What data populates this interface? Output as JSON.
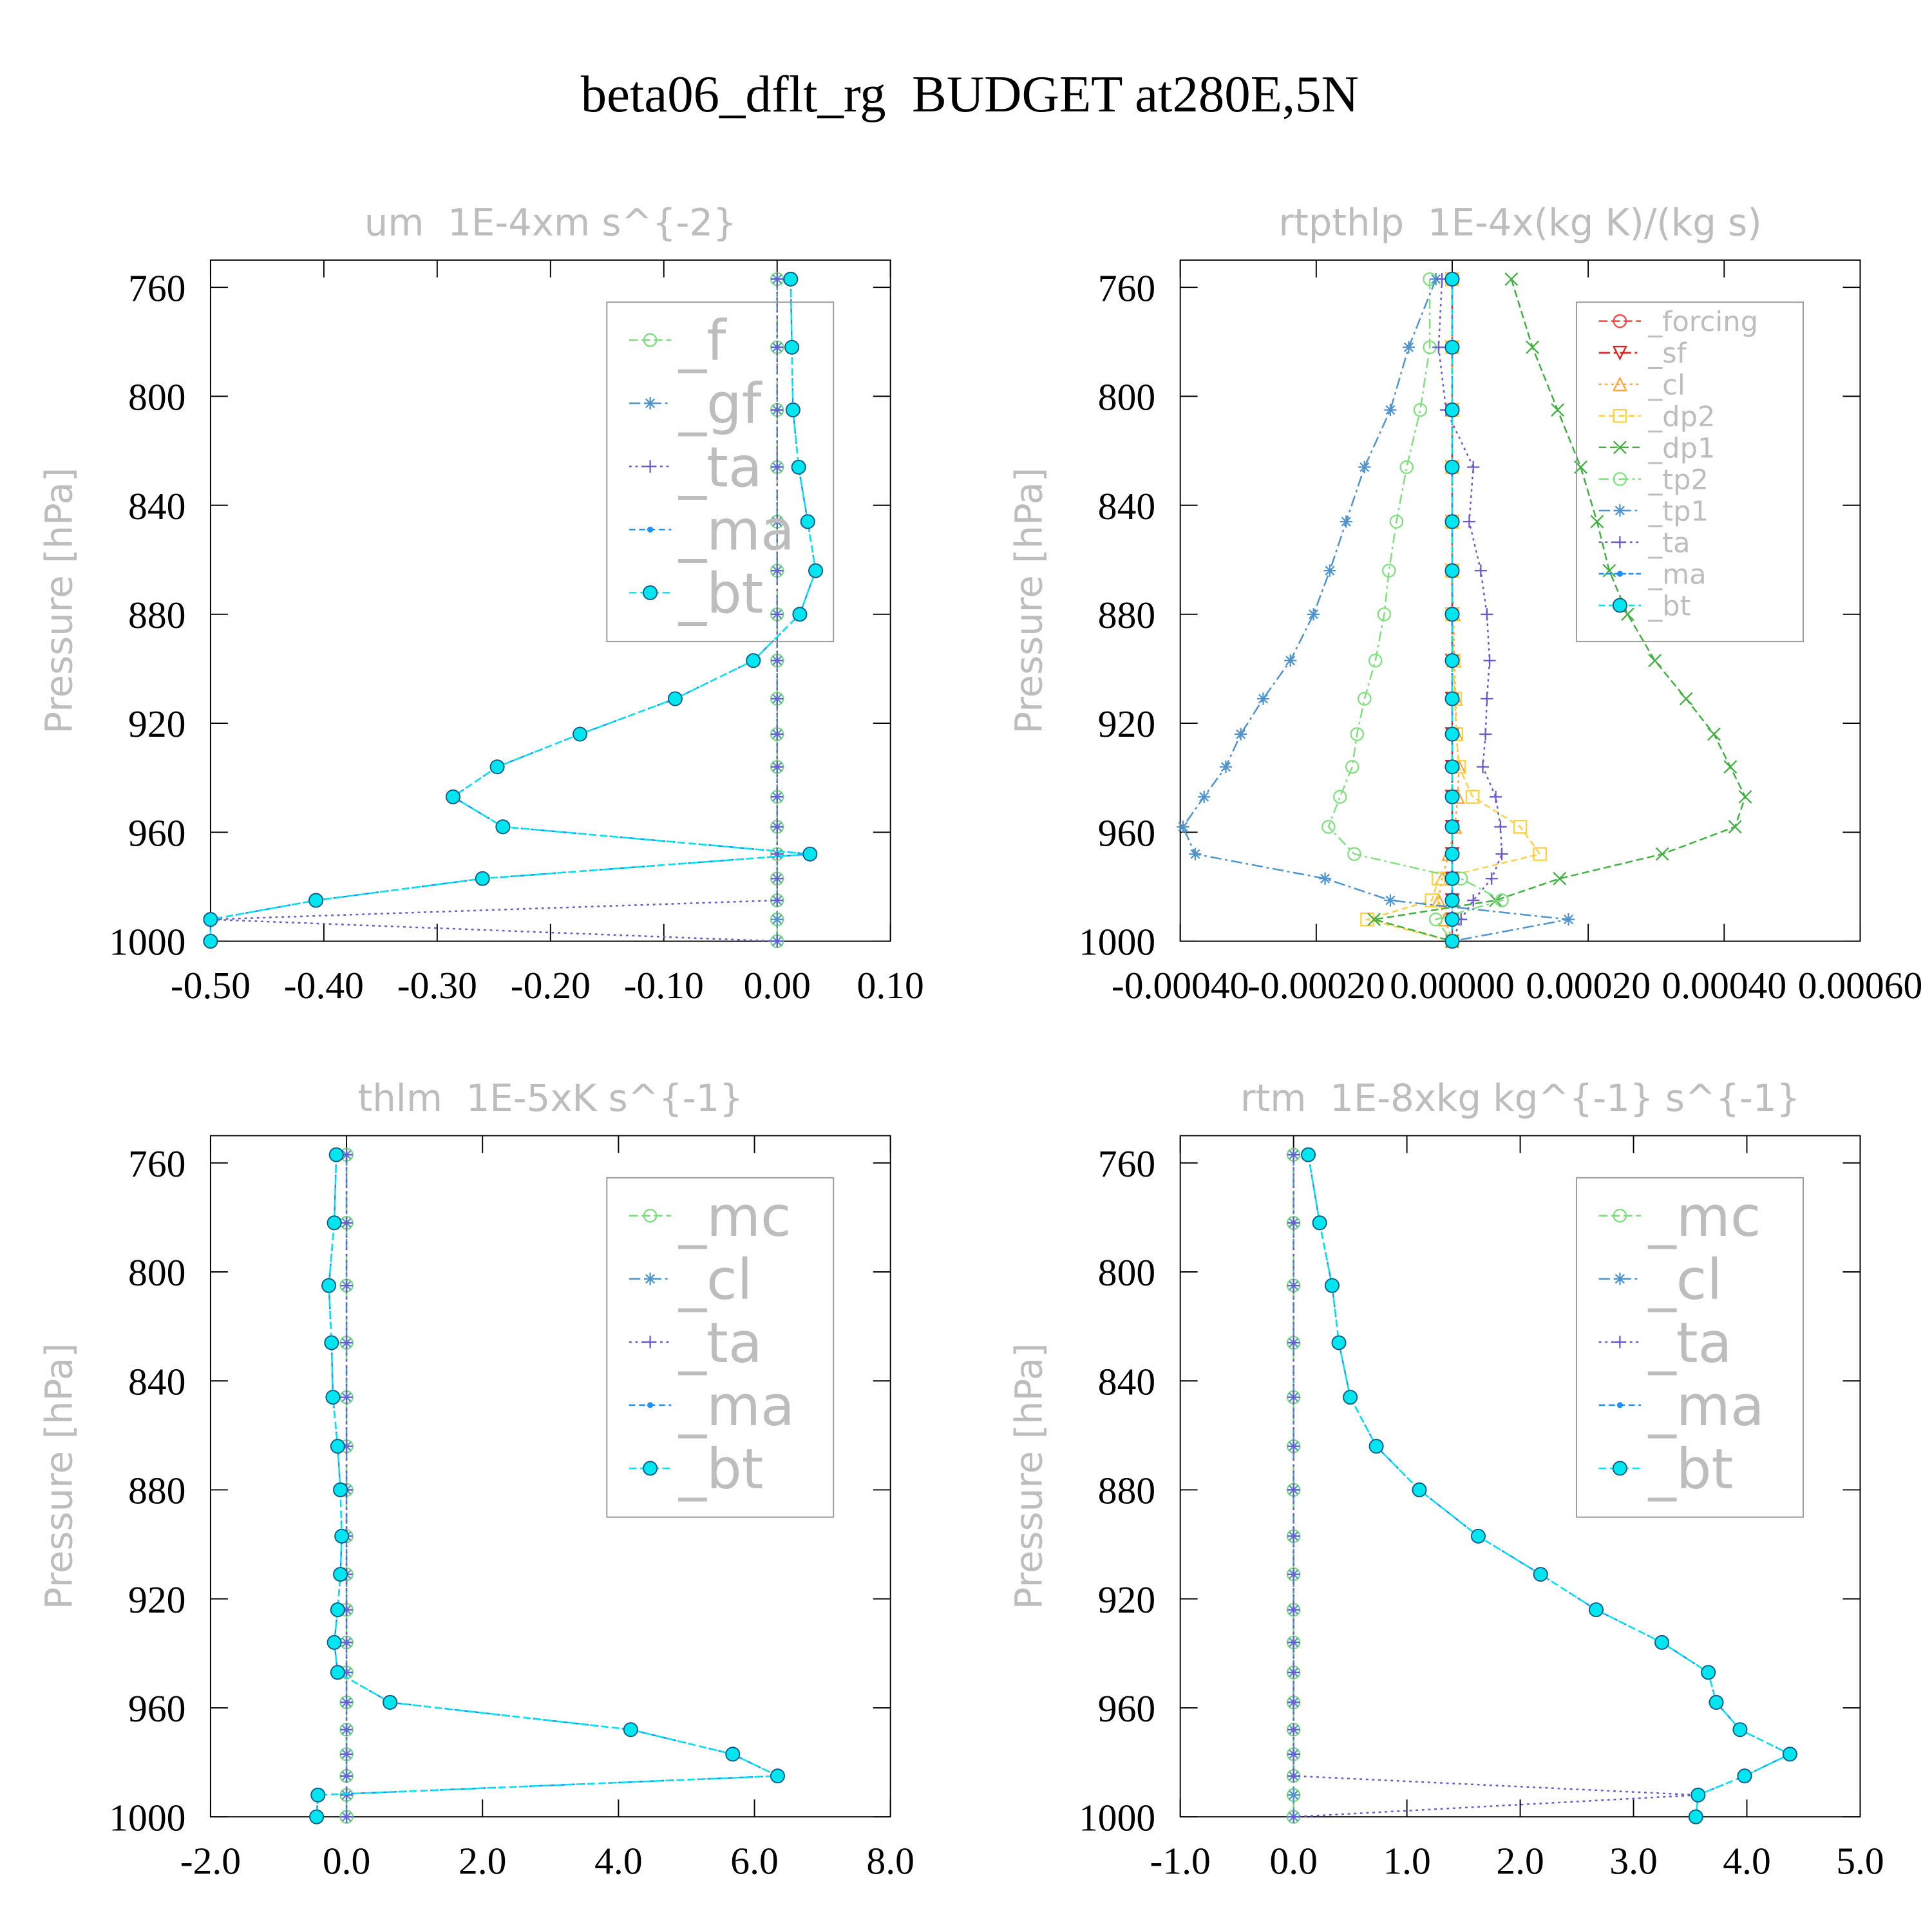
{
  "title": "beta06_dflt_rg  BUDGET at280E,5N",
  "chart_data": [
    {
      "type": "line",
      "title": "um  1E-4xm s^{-2}",
      "ylabel": "Pressure [hPa]",
      "y": [
        757,
        782,
        805,
        826,
        846,
        864,
        880,
        897,
        911,
        924,
        936,
        947,
        958,
        968,
        977,
        985,
        992,
        1000
      ],
      "xlim": [
        -0.5,
        0.1
      ],
      "xticks": [
        {
          "value": -0.5,
          "label": "-0.50"
        },
        {
          "value": -0.4,
          "label": "-0.40"
        },
        {
          "value": -0.3,
          "label": "-0.30"
        },
        {
          "value": -0.2,
          "label": "-0.20"
        },
        {
          "value": -0.1,
          "label": "-0.10"
        },
        {
          "value": 0,
          "label": "0.00"
        },
        {
          "value": 0.1,
          "label": "0.10"
        }
      ],
      "ylim": [
        750,
        1000
      ],
      "yticks": [
        760,
        800,
        840,
        880,
        920,
        960,
        1000
      ],
      "y_inverted": true,
      "legend": true,
      "series": [
        {
          "name": "_f",
          "color": "#7ddc7d",
          "marker": "circle",
          "values": [
            0,
            0,
            0,
            0,
            0,
            0,
            0,
            0,
            0,
            0,
            0,
            0,
            0,
            0,
            0,
            0,
            0,
            0
          ]
        },
        {
          "name": "_gf",
          "color": "#4f94cd",
          "marker": "asterisk",
          "values": [
            0,
            0,
            0,
            0,
            0,
            0,
            0,
            0,
            0,
            0,
            0,
            0,
            0,
            0,
            0,
            0,
            0,
            0
          ]
        },
        {
          "name": "_ta",
          "color": "#6a5acd",
          "marker": "plus",
          "values": [
            0,
            0,
            0,
            0,
            0,
            0,
            0,
            0,
            0,
            0,
            0,
            0,
            0,
            0,
            0,
            0,
            -0.5,
            0
          ]
        },
        {
          "name": "_ma",
          "color": "#1e90ff",
          "marker": "dot",
          "values": [
            0.012,
            0.013,
            0.014,
            0.019,
            0.027,
            0.034,
            0.02,
            -0.021,
            -0.09,
            -0.174,
            -0.247,
            -0.286,
            -0.242,
            0.029,
            -0.26,
            -0.407,
            -0.5,
            -0.5
          ]
        },
        {
          "name": "_bt",
          "color": "#00e5ee",
          "marker": "filled",
          "values": [
            0.012,
            0.013,
            0.014,
            0.019,
            0.027,
            0.034,
            0.02,
            -0.021,
            -0.09,
            -0.174,
            -0.247,
            -0.286,
            -0.242,
            0.029,
            -0.26,
            -0.407,
            -0.5,
            -0.5
          ]
        }
      ]
    },
    {
      "type": "line",
      "title": "rtpthlp  1E-4x(kg K)/(kg s)",
      "ylabel": "Pressure [hPa]",
      "y": [
        757,
        782,
        805,
        826,
        846,
        864,
        880,
        897,
        911,
        924,
        936,
        947,
        958,
        968,
        977,
        985,
        992,
        1000
      ],
      "xlim": [
        -0.0004,
        0.0006
      ],
      "xticks": [
        {
          "value": -0.0004,
          "label": "-0.00040"
        },
        {
          "value": -0.0002,
          "label": "-0.00020"
        },
        {
          "value": 0,
          "label": "0.00000"
        },
        {
          "value": 0.0002,
          "label": "0.00020"
        },
        {
          "value": 0.0004,
          "label": "0.00040"
        },
        {
          "value": 0.0006,
          "label": "0.00060"
        }
      ],
      "ylim": [
        750,
        1000
      ],
      "yticks": [
        760,
        800,
        840,
        880,
        920,
        960,
        1000
      ],
      "y_inverted": true,
      "legend": true,
      "series": [
        {
          "name": "_forcing",
          "color": "#ff4040",
          "marker": "circle",
          "values": [
            0,
            0,
            0,
            0,
            0,
            0,
            0,
            0,
            0,
            0,
            0,
            0,
            0,
            0,
            0,
            0,
            0,
            0
          ]
        },
        {
          "name": "_sf",
          "color": "#e02020",
          "marker": "tri-down",
          "values": [
            0,
            0,
            0,
            0,
            0,
            0,
            0,
            0,
            0,
            0,
            0,
            0,
            0,
            0,
            0,
            0,
            0,
            0
          ]
        },
        {
          "name": "_cl",
          "color": "#ffa530",
          "marker": "tri-up",
          "values": [
            0,
            0,
            0,
            0,
            0,
            0,
            2e-06,
            3e-06,
            5e-06,
            6e-06,
            1e-05,
            8e-06,
            4e-06,
            -5e-06,
            -1.5e-05,
            -2e-05,
            -1e-05,
            0
          ]
        },
        {
          "name": "_dp2",
          "color": "#ffd040",
          "marker": "square",
          "values": [
            0,
            0,
            0,
            0,
            0,
            0,
            0,
            2e-06,
            4e-06,
            6e-06,
            1e-05,
            3e-05,
            0.0001,
            0.000129,
            -2e-05,
            -3e-05,
            -0.000125,
            0
          ]
        },
        {
          "name": "_dp1",
          "color": "#40b040",
          "marker": "x",
          "values": [
            8.7e-05,
            0.000118,
            0.000155,
            0.000189,
            0.000213,
            0.000231,
            0.000258,
            0.000298,
            0.000344,
            0.000385,
            0.000409,
            0.000431,
            0.000416,
            0.000309,
            0.000158,
            6.4e-05,
            -0.000115,
            0
          ]
        },
        {
          "name": "_tp2",
          "color": "#80e080",
          "marker": "circle",
          "values": [
            -3.3e-05,
            -3.3e-05,
            -4.7e-05,
            -6.7e-05,
            -8.2e-05,
            -9.3e-05,
            -0.0001,
            -0.000113,
            -0.000129,
            -0.00014,
            -0.000147,
            -0.000165,
            -0.000182,
            -0.000144,
            1.3e-05,
            7.3e-05,
            -2.4e-05,
            0
          ]
        },
        {
          "name": "_tp1",
          "color": "#4f94cd",
          "marker": "asterisk",
          "values": [
            -2.4e-05,
            -6.4e-05,
            -9.1e-05,
            -0.000129,
            -0.000156,
            -0.00018,
            -0.000204,
            -0.000238,
            -0.000278,
            -0.000311,
            -0.000333,
            -0.000365,
            -0.000396,
            -0.000378,
            -0.000187,
            -9.1e-05,
            0.000171,
            0
          ]
        },
        {
          "name": "_ta",
          "color": "#6a5acd",
          "marker": "plus",
          "values": [
            -1.5e-05,
            -2e-05,
            -9e-06,
            3.1e-05,
            2.5e-05,
            4.2e-05,
            5.1e-05,
            5.5e-05,
            5.1e-05,
            4.9e-05,
            4.5e-05,
            6.4e-05,
            7.1e-05,
            7.3e-05,
            5.8e-05,
            3.1e-05,
            1.3e-05,
            0
          ]
        },
        {
          "name": "_ma",
          "color": "#1e90ff",
          "marker": "dot",
          "values": [
            0,
            0,
            0,
            0,
            0,
            0,
            0,
            0,
            0,
            0,
            0,
            0,
            0,
            0,
            0,
            0,
            0,
            0
          ]
        },
        {
          "name": "_bt",
          "color": "#00e5ee",
          "marker": "filled",
          "values": [
            0,
            0,
            0,
            0,
            0,
            0,
            0,
            0,
            0,
            0,
            0,
            0,
            0,
            0,
            0,
            0,
            0,
            0
          ]
        }
      ]
    },
    {
      "type": "line",
      "title": "thlm  1E-5xK s^{-1}",
      "ylabel": "Pressure [hPa]",
      "y": [
        757,
        782,
        805,
        826,
        846,
        864,
        880,
        897,
        911,
        924,
        936,
        947,
        958,
        968,
        977,
        985,
        992,
        1000
      ],
      "xlim": [
        -2,
        8
      ],
      "xticks": [
        {
          "value": -2,
          "label": "-2.0"
        },
        {
          "value": 0,
          "label": "0.0"
        },
        {
          "value": 2,
          "label": "2.0"
        },
        {
          "value": 4,
          "label": "4.0"
        },
        {
          "value": 6,
          "label": "6.0"
        },
        {
          "value": 8,
          "label": "8.0"
        }
      ],
      "ylim": [
        750,
        1000
      ],
      "yticks": [
        760,
        800,
        840,
        880,
        920,
        960,
        1000
      ],
      "y_inverted": true,
      "legend": true,
      "series": [
        {
          "name": "_mc",
          "color": "#7ddc7d",
          "marker": "circle",
          "values": [
            0,
            0,
            0,
            0,
            0,
            0,
            0,
            0,
            0,
            0,
            0,
            0,
            0,
            0,
            0,
            0,
            0,
            0
          ]
        },
        {
          "name": "_cl",
          "color": "#4f94cd",
          "marker": "asterisk",
          "values": [
            0,
            0,
            0,
            0,
            0,
            0,
            0,
            0,
            0,
            0,
            0,
            0,
            0,
            0,
            0,
            0,
            0,
            0
          ]
        },
        {
          "name": "_ta",
          "color": "#6a5acd",
          "marker": "plus",
          "values": [
            0,
            0,
            0,
            0,
            0,
            0,
            0,
            0,
            0,
            0,
            0,
            0,
            0,
            0,
            0,
            0,
            0,
            0
          ]
        },
        {
          "name": "_ma",
          "color": "#1e90ff",
          "marker": "dot",
          "values": [
            -0.15,
            -0.18,
            -0.26,
            -0.22,
            -0.2,
            -0.13,
            -0.09,
            -0.07,
            -0.09,
            -0.13,
            -0.18,
            -0.13,
            0.64,
            4.18,
            5.68,
            6.34,
            -0.42,
            -0.44
          ]
        },
        {
          "name": "_bt",
          "color": "#00e5ee",
          "marker": "filled",
          "values": [
            -0.15,
            -0.18,
            -0.26,
            -0.22,
            -0.2,
            -0.13,
            -0.09,
            -0.07,
            -0.09,
            -0.13,
            -0.18,
            -0.13,
            0.64,
            4.18,
            5.68,
            6.34,
            -0.42,
            -0.44
          ]
        }
      ]
    },
    {
      "type": "line",
      "title": "rtm  1E-8xkg kg^{-1} s^{-1}",
      "ylabel": "Pressure [hPa]",
      "y": [
        757,
        782,
        805,
        826,
        846,
        864,
        880,
        897,
        911,
        924,
        936,
        947,
        958,
        968,
        977,
        985,
        992,
        1000
      ],
      "xlim": [
        -1,
        5
      ],
      "xticks": [
        {
          "value": -1,
          "label": "-1.0"
        },
        {
          "value": 0,
          "label": "0.0"
        },
        {
          "value": 1,
          "label": "1.0"
        },
        {
          "value": 2,
          "label": "2.0"
        },
        {
          "value": 3,
          "label": "3.0"
        },
        {
          "value": 4,
          "label": "4.0"
        },
        {
          "value": 5,
          "label": "5.0"
        }
      ],
      "ylim": [
        750,
        1000
      ],
      "yticks": [
        760,
        800,
        840,
        880,
        920,
        960,
        1000
      ],
      "y_inverted": true,
      "legend": true,
      "series": [
        {
          "name": "_mc",
          "color": "#7ddc7d",
          "marker": "circle",
          "values": [
            0,
            0,
            0,
            0,
            0,
            0,
            0,
            0,
            0,
            0,
            0,
            0,
            0,
            0,
            0,
            0,
            0,
            0
          ]
        },
        {
          "name": "_cl",
          "color": "#4f94cd",
          "marker": "asterisk",
          "values": [
            0,
            0,
            0,
            0,
            0,
            0,
            0,
            0,
            0,
            0,
            0,
            0,
            0,
            0,
            0,
            0,
            0,
            0
          ]
        },
        {
          "name": "_ta",
          "color": "#6a5acd",
          "marker": "plus",
          "values": [
            0,
            0,
            0,
            0,
            0,
            0,
            0,
            0,
            0,
            0,
            0,
            0,
            0,
            0,
            0,
            0,
            3.57,
            0
          ]
        },
        {
          "name": "_ma",
          "color": "#1e90ff",
          "marker": "dot",
          "values": [
            0.13,
            0.23,
            0.34,
            0.4,
            0.5,
            0.73,
            1.11,
            1.63,
            2.18,
            2.67,
            3.25,
            3.66,
            3.73,
            3.94,
            4.38,
            3.98,
            3.57,
            3.55
          ]
        },
        {
          "name": "_bt",
          "color": "#00e5ee",
          "marker": "filled",
          "values": [
            0.13,
            0.23,
            0.34,
            0.4,
            0.5,
            0.73,
            1.11,
            1.63,
            2.18,
            2.67,
            3.25,
            3.66,
            3.73,
            3.94,
            4.38,
            3.98,
            3.57,
            3.55
          ]
        }
      ]
    }
  ]
}
